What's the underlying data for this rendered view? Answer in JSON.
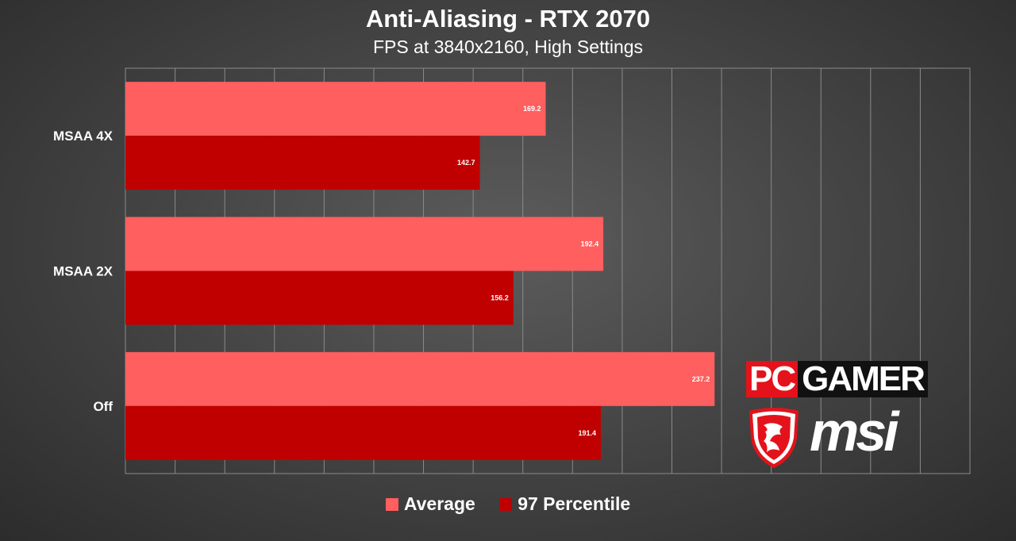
{
  "chart_data": {
    "type": "bar",
    "orientation": "horizontal",
    "title": "Anti-Aliasing - RTX 2070",
    "subtitle": "FPS at 3840x2160, High Settings",
    "categories": [
      "MSAA 4X",
      "MSAA 2X",
      "Off"
    ],
    "series": [
      {
        "name": "Average",
        "values": [
          169.2,
          192.4,
          237.2
        ],
        "color": "#ff5f5f"
      },
      {
        "name": "97 Percentile",
        "values": [
          142.7,
          156.2,
          191.4
        ],
        "color": "#c00000"
      }
    ],
    "xlim": [
      0,
      340
    ],
    "grid": true,
    "legend": "bottom"
  },
  "logos": {
    "pcgamer": {
      "part1": "PC",
      "part2": "GAMER"
    },
    "msi": {
      "text": "msi",
      "icon": "dragon-shield-icon"
    }
  }
}
